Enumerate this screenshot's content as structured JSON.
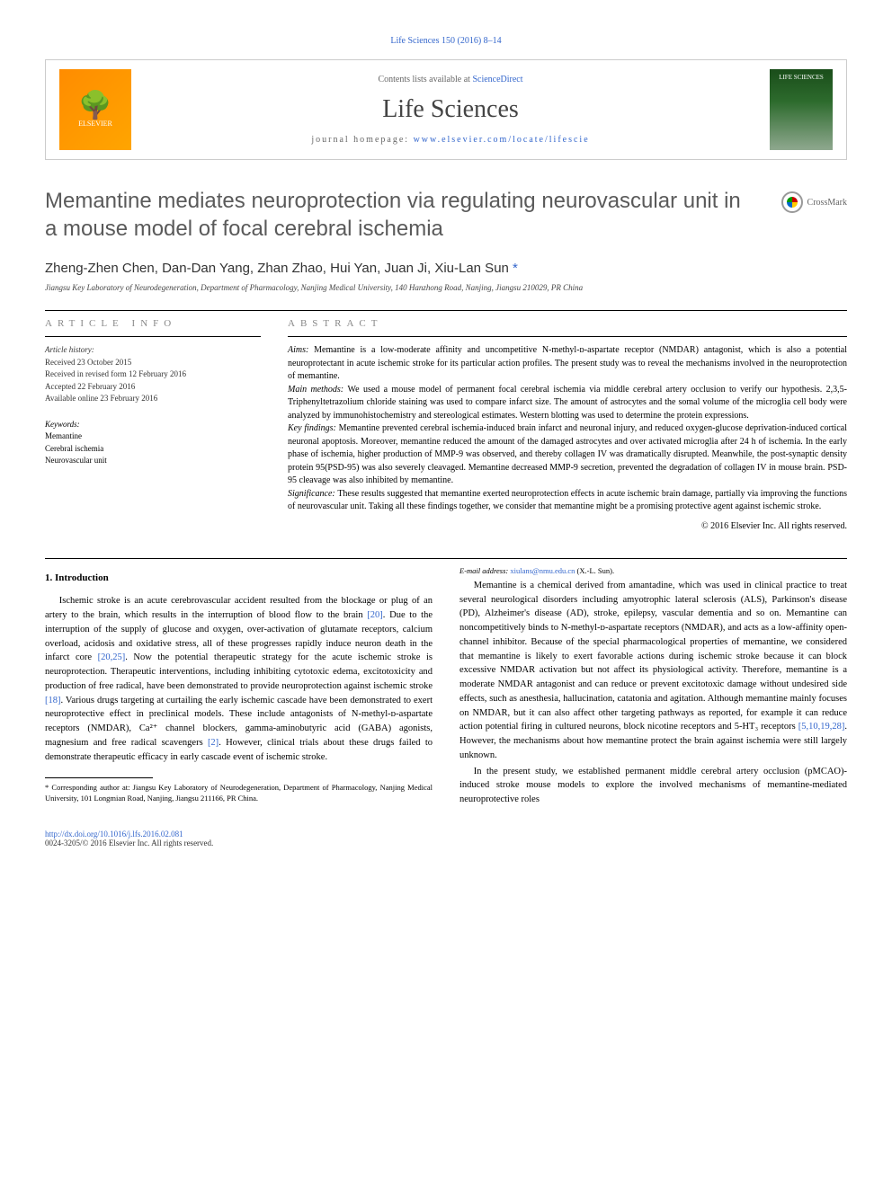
{
  "journal_ref": "Life Sciences 150 (2016) 8–14",
  "header": {
    "contents_text": "Contents lists available at ",
    "sciencedirect": "ScienceDirect",
    "journal_name": "Life Sciences",
    "homepage_label": "journal homepage: ",
    "homepage_url": "www.elsevier.com/locate/lifescie",
    "elsevier": "ELSEVIER",
    "cover_text": "LIFE SCIENCES"
  },
  "crossmark": "CrossMark",
  "title": "Memantine mediates neuroprotection via regulating neurovascular unit in a mouse model of focal cerebral ischemia",
  "authors": "Zheng-Zhen Chen, Dan-Dan Yang, Zhan Zhao, Hui Yan, Juan Ji, Xiu-Lan Sun ",
  "corresponding_mark": "*",
  "affiliation": "Jiangsu Key Laboratory of Neurodegeneration, Department of Pharmacology, Nanjing Medical University, 140 Hanzhong Road, Nanjing, Jiangsu 210029, PR China",
  "article_info": {
    "heading": "article info",
    "history_label": "Article history:",
    "received": "Received 23 October 2015",
    "revised": "Received in revised form 12 February 2016",
    "accepted": "Accepted 22 February 2016",
    "available": "Available online 23 February 2016",
    "keywords_label": "Keywords:",
    "kw1": "Memantine",
    "kw2": "Cerebral ischemia",
    "kw3": "Neurovascular unit"
  },
  "abstract": {
    "heading": "abstract",
    "aims_label": "Aims: ",
    "aims": "Memantine is a low-moderate affinity and uncompetitive N-methyl-ᴅ-aspartate receptor (NMDAR) antagonist, which is also a potential neuroprotectant in acute ischemic stroke for its particular action profiles. The present study was to reveal the mechanisms involved in the neuroprotection of memantine.",
    "methods_label": "Main methods: ",
    "methods": "We used a mouse model of permanent focal cerebral ischemia via middle cerebral artery occlusion to verify our hypothesis. 2,3,5-Triphenyltetrazolium chloride staining was used to compare infarct size. The amount of astrocytes and the somal volume of the microglia cell body were analyzed by immunohistochemistry and stereological estimates. Western blotting was used to determine the protein expressions.",
    "findings_label": "Key findings: ",
    "findings": "Memantine prevented cerebral ischemia-induced brain infarct and neuronal injury, and reduced oxygen-glucose deprivation-induced cortical neuronal apoptosis. Moreover, memantine reduced the amount of the damaged astrocytes and over activated microglia after 24 h of ischemia. In the early phase of ischemia, higher production of MMP-9 was observed, and thereby collagen IV was dramatically disrupted. Meanwhile, the post-synaptic density protein 95(PSD-95) was also severely cleavaged. Memantine decreased MMP-9 secretion, prevented the degradation of collagen IV in mouse brain. PSD-95 cleavage was also inhibited by memantine.",
    "significance_label": "Significance: ",
    "significance": "These results suggested that memantine exerted neuroprotection effects in acute ischemic brain damage, partially via improving the functions of neurovascular unit. Taking all these findings together, we consider that memantine might be a promising protective agent against ischemic stroke.",
    "copyright": "© 2016 Elsevier Inc. All rights reserved."
  },
  "body": {
    "intro_heading": "1. Introduction",
    "p1a": "Ischemic stroke is an acute cerebrovascular accident resulted from the blockage or plug of an artery to the brain, which results in the interruption of blood flow to the brain ",
    "ref20a": "[20]",
    "p1b": ". Due to the interruption of the supply of glucose and oxygen, over-activation of glutamate receptors, calcium overload, acidosis and oxidative stress, all of these progresses rapidly induce neuron death in the infarct core ",
    "ref2025": "[20,25]",
    "p1c": ". Now the potential therapeutic strategy for the acute ischemic stroke is neuroprotection. Therapeutic interventions, including inhibiting cytotoxic edema, excitotoxicity and production of free radical, have been demonstrated to provide neuroprotection against ischemic stroke ",
    "ref18": "[18]",
    "p1d": ". Various drugs targeting at curtailing the early ischemic cascade have been demonstrated to exert neuroprotective effect in preclinical models. These include antagonists of N-methyl-ᴅ-aspartate receptors (NMDAR), Ca²⁺ channel blockers, gamma-aminobutyric acid (GABA) agonists, magnesium and free radical scavengers ",
    "ref2": "[2]",
    "p1e": ". However, clinical trials about these drugs failed to demonstrate therapeutic efficacy in early cascade event of ischemic stroke.",
    "p2a": "Memantine is a chemical derived from amantadine, which was used in clinical practice to treat several neurological disorders including amyotrophic lateral sclerosis (ALS), Parkinson's disease (PD), Alzheimer's disease (AD), stroke, epilepsy, vascular dementia and so on. Memantine can noncompetitively binds to N-methyl-ᴅ-aspartate receptors (NMDAR), and acts as a low-affinity open-channel inhibitor. Because of the special pharmacological properties of memantine, we considered that memantine is likely to exert favorable actions during ischemic stroke because it can block excessive NMDAR activation but not affect its physiological activity. Therefore, memantine is a moderate NMDAR antagonist and can reduce or prevent excitotoxic damage without undesired side effects, such as anesthesia, hallucination, catatonia and agitation. Although memantine mainly focuses on NMDAR, but it can also affect other targeting pathways as reported, for example it can reduce action potential firing in cultured neurons, block nicotine receptors and 5-HT₃ receptors ",
    "ref5etc": "[5,10,19,28]",
    "p2b": ". However, the mechanisms about how memantine protect the brain against ischemia were still largely unknown.",
    "p3": "In the present study, we established permanent middle cerebral artery occlusion (pMCAO)-induced stroke mouse models to explore the involved mechanisms of memantine-mediated neuroprotective roles"
  },
  "footnote": {
    "corr": "* Corresponding author at: Jiangsu Key Laboratory of Neurodegeneration, Department of Pharmacology, Nanjing Medical University, 101 Longmian Road, Nanjing, Jiangsu 211166, PR China.",
    "email_label": "E-mail address: ",
    "email": "xiulans@nmu.edu.cn",
    "email_suffix": " (X.-L. Sun)."
  },
  "footer": {
    "doi": "http://dx.doi.org/10.1016/j.lfs.2016.02.081",
    "issn": "0024-3205/© 2016 Elsevier Inc. All rights reserved."
  }
}
